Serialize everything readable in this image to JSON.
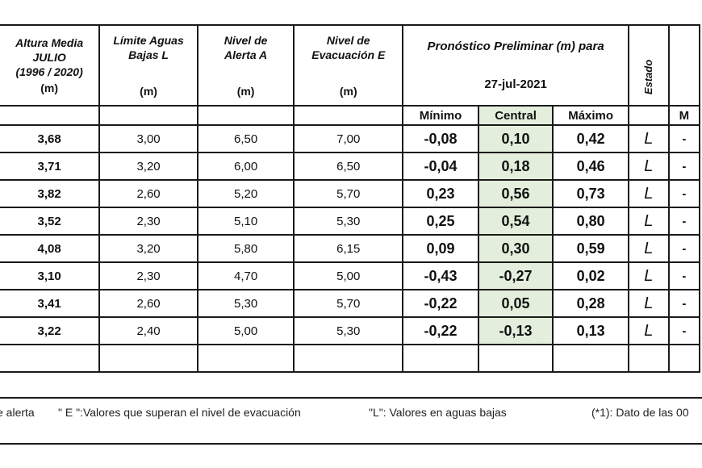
{
  "headers": {
    "altura": {
      "l1": "Altura Media",
      "l2": "JULIO",
      "l3": "(1996 / 2020)",
      "unit": "(m)"
    },
    "limite": {
      "l1": "Límite Aguas",
      "l2": "Bajas L",
      "unit": "(m)"
    },
    "alerta": {
      "l1": "Nivel de",
      "l2": "Alerta A",
      "unit": "(m)"
    },
    "evacuacion": {
      "l1": "Nivel de",
      "l2": "Evacuación E",
      "unit": "(m)"
    },
    "pronostico": {
      "title": "Pronóstico Preliminar (m) para",
      "date": "27-jul-2021"
    },
    "estado": "Estado",
    "cut_sub": "M"
  },
  "subheaders": {
    "min": "Mínimo",
    "central": "Central",
    "max": "Máximo"
  },
  "rows": [
    {
      "altura": "3,68",
      "limite": "3,00",
      "alerta": "6,50",
      "evac": "7,00",
      "min": "-0,08",
      "central": "0,10",
      "max": "0,42",
      "estado": "L",
      "cut": "-"
    },
    {
      "altura": "3,71",
      "limite": "3,20",
      "alerta": "6,00",
      "evac": "6,50",
      "min": "-0,04",
      "central": "0,18",
      "max": "0,46",
      "estado": "L",
      "cut": "-"
    },
    {
      "altura": "3,82",
      "limite": "2,60",
      "alerta": "5,20",
      "evac": "5,70",
      "min": "0,23",
      "central": "0,56",
      "max": "0,73",
      "estado": "L",
      "cut": "-"
    },
    {
      "altura": "3,52",
      "limite": "2,30",
      "alerta": "5,10",
      "evac": "5,30",
      "min": "0,25",
      "central": "0,54",
      "max": "0,80",
      "estado": "L",
      "cut": "-"
    },
    {
      "altura": "4,08",
      "limite": "3,20",
      "alerta": "5,80",
      "evac": "6,15",
      "min": "0,09",
      "central": "0,30",
      "max": "0,59",
      "estado": "L",
      "cut": "-"
    },
    {
      "altura": "3,10",
      "limite": "2,30",
      "alerta": "4,70",
      "evac": "5,00",
      "min": "-0,43",
      "central": "-0,27",
      "max": "0,02",
      "estado": "L",
      "cut": "-"
    },
    {
      "altura": "3,41",
      "limite": "2,60",
      "alerta": "5,30",
      "evac": "5,70",
      "min": "-0,22",
      "central": "0,05",
      "max": "0,28",
      "estado": "L",
      "cut": "-"
    },
    {
      "altura": "3,22",
      "limite": "2,40",
      "alerta": "5,00",
      "evac": "5,30",
      "min": "-0,22",
      "central": "-0,13",
      "max": "0,13",
      "estado": "L",
      "cut": "-"
    }
  ],
  "footnotes": {
    "alerta": "e alerta",
    "evac": "\" E \":Valores que superan el nivel de evacuación",
    "bajas": "\"L\": Valores en aguas bajas",
    "dato": "(*1): Dato de las 00"
  },
  "colors": {
    "central_highlight": "#e3efdc",
    "border": "#1a1a1a"
  }
}
